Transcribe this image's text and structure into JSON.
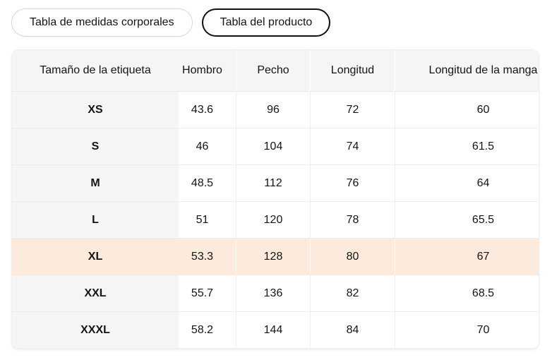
{
  "colors": {
    "highlight_row": "#fcebdc",
    "header_bg": "#f5f5f5",
    "text": "#141414"
  },
  "tabs": [
    {
      "label": "Tabla de medidas corporales",
      "selected": false
    },
    {
      "label": "Tabla del producto",
      "selected": true
    }
  ],
  "table": {
    "columns": [
      "Tamaño de la etiqueta",
      "Hombro",
      "Pecho",
      "Longitud",
      "Longitud de la manga"
    ],
    "rows": [
      {
        "label": "XS",
        "values": [
          "43.6",
          "96",
          "72",
          "60"
        ],
        "highlighted": false
      },
      {
        "label": "S",
        "values": [
          "46",
          "104",
          "74",
          "61.5"
        ],
        "highlighted": false
      },
      {
        "label": "M",
        "values": [
          "48.5",
          "112",
          "76",
          "64"
        ],
        "highlighted": false
      },
      {
        "label": "L",
        "values": [
          "51",
          "120",
          "78",
          "65.5"
        ],
        "highlighted": false
      },
      {
        "label": "XL",
        "values": [
          "53.3",
          "128",
          "80",
          "67"
        ],
        "highlighted": true
      },
      {
        "label": "XXL",
        "values": [
          "55.7",
          "136",
          "82",
          "68.5"
        ],
        "highlighted": false
      },
      {
        "label": "XXXL",
        "values": [
          "58.2",
          "144",
          "84",
          "70"
        ],
        "highlighted": false
      }
    ]
  }
}
